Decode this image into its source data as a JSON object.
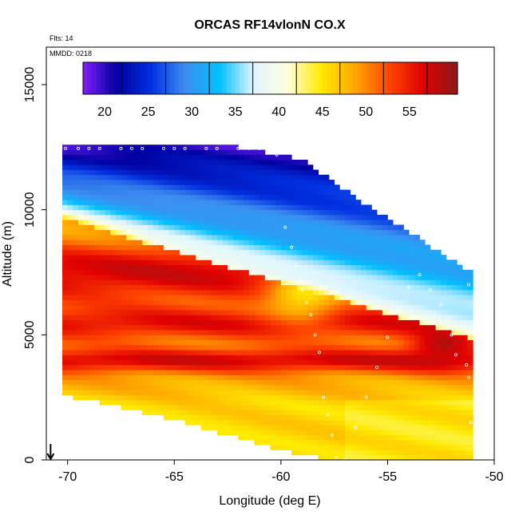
{
  "chart_data": {
    "type": "heatmap",
    "title": "ORCAS RF14vlonN CO.X",
    "annotations": {
      "flights": "Flts: 14",
      "mmdd": "MMDD: 0218"
    },
    "xlabel": "Longitude (deg E)",
    "ylabel": "Altitude (m)",
    "xlim": [
      -71,
      -50
    ],
    "ylim": [
      0,
      16500
    ],
    "xticks": [
      -70,
      -65,
      -60,
      -55,
      -50
    ],
    "yticks": [
      0,
      5000,
      10000,
      15000
    ],
    "grid": false,
    "colorbar": {
      "placement": "top-inside",
      "range": [
        15.5,
        58.5
      ],
      "ticks": [
        20,
        25,
        30,
        35,
        40,
        45,
        50,
        55
      ],
      "colors": [
        "#7f1fff",
        "#0000a0",
        "#0030e0",
        "#3d8df0",
        "#00bfff",
        "#dff5ff",
        "#ffffe0",
        "#ffea00",
        "#ffa500",
        "#ff4500",
        "#e00000",
        "#8b1a1a"
      ]
    },
    "cell_size": {
      "lon": 0.25,
      "alt": 200
    },
    "region": {
      "top": [
        [
          -70.2,
          12500
        ],
        [
          -62,
          12500
        ],
        [
          -59,
          12000
        ],
        [
          -56.5,
          10500
        ],
        [
          -52,
          8000
        ],
        [
          -51,
          7500
        ]
      ],
      "left": [
        [
          -70.2,
          12500
        ],
        [
          -70.2,
          9500
        ],
        [
          -70.5,
          9500
        ],
        [
          -70.5,
          6800
        ],
        [
          -70.8,
          6800
        ],
        [
          -70.8,
          3100
        ],
        [
          -71,
          3100
        ],
        [
          -71,
          2800
        ],
        [
          -70.2,
          2600
        ],
        [
          -68,
          2200
        ],
        [
          -65,
          1600
        ],
        [
          -62.5,
          1000
        ],
        [
          -60,
          400
        ],
        [
          -57.5,
          0
        ],
        [
          -51,
          0
        ]
      ],
      "right_edge": -51
    },
    "field_model": {
      "background": 46,
      "features": [
        {
          "kind": "upper_gradient",
          "lon0": -70,
          "alt_at_lon0": 10500,
          "slope_m_per_deg": -250,
          "value_top": 18,
          "value_bottom": 40
        },
        {
          "kind": "band_high",
          "alt": 7500,
          "width": 1200,
          "value": 55
        },
        {
          "kind": "band_high",
          "alt": 5500,
          "width": 700,
          "value": 54
        },
        {
          "kind": "band_high",
          "alt": 4000,
          "width": 500,
          "value": 55
        },
        {
          "kind": "blob_low",
          "lon": -59,
          "alt": 6500,
          "value": 43
        },
        {
          "kind": "blob_high",
          "lon": -52.5,
          "alt": 4500,
          "value": 57
        },
        {
          "kind": "lower_plateau",
          "alt_max": 3000,
          "value": 44
        }
      ]
    },
    "track": [
      {
        "lon": -70.1,
        "alt": 12450
      },
      {
        "lon": -69.5,
        "alt": 12450
      },
      {
        "lon": -69,
        "alt": 12450
      },
      {
        "lon": -68.5,
        "alt": 12450
      },
      {
        "lon": -67.5,
        "alt": 12450
      },
      {
        "lon": -67,
        "alt": 12450
      },
      {
        "lon": -66.5,
        "alt": 12450
      },
      {
        "lon": -65.5,
        "alt": 12450
      },
      {
        "lon": -65,
        "alt": 12450
      },
      {
        "lon": -64.5,
        "alt": 12450
      },
      {
        "lon": -63.5,
        "alt": 12450
      },
      {
        "lon": -63,
        "alt": 12450
      },
      {
        "lon": -62,
        "alt": 12450
      },
      {
        "lon": -61.5,
        "alt": 12450
      },
      {
        "lon": -61,
        "alt": 12450
      },
      {
        "lon": -60.2,
        "alt": 12200
      },
      {
        "lon": -59.8,
        "alt": 9300
      },
      {
        "lon": -59.5,
        "alt": 8500
      },
      {
        "lon": -59.3,
        "alt": 7800
      },
      {
        "lon": -59.1,
        "alt": 7200
      },
      {
        "lon": -59,
        "alt": 6800
      },
      {
        "lon": -58.8,
        "alt": 6300
      },
      {
        "lon": -58.6,
        "alt": 5800
      },
      {
        "lon": -58.4,
        "alt": 5000
      },
      {
        "lon": -58.2,
        "alt": 4300
      },
      {
        "lon": -58,
        "alt": 2500
      },
      {
        "lon": -57.8,
        "alt": 1800
      },
      {
        "lon": -57.6,
        "alt": 1000
      },
      {
        "lon": -57.4,
        "alt": 100
      },
      {
        "lon": -57,
        "alt": 0
      },
      {
        "lon": -56.5,
        "alt": 1300
      },
      {
        "lon": -56,
        "alt": 2500
      },
      {
        "lon": -55.5,
        "alt": 3700
      },
      {
        "lon": -55,
        "alt": 4900
      },
      {
        "lon": -54.5,
        "alt": 6000
      },
      {
        "lon": -54,
        "alt": 6900
      },
      {
        "lon": -53.5,
        "alt": 7400
      },
      {
        "lon": -53,
        "alt": 6800
      },
      {
        "lon": -52.5,
        "alt": 6200
      },
      {
        "lon": -52,
        "alt": 5000
      },
      {
        "lon": -51.8,
        "alt": 4200
      },
      {
        "lon": -51.3,
        "alt": 3800
      },
      {
        "lon": -51.2,
        "alt": 3300
      },
      {
        "lon": -51.2,
        "alt": 7000
      },
      {
        "lon": -51.1,
        "alt": 1500
      }
    ],
    "launch_marker": {
      "lon": -70.8,
      "label": "arrow"
    }
  }
}
